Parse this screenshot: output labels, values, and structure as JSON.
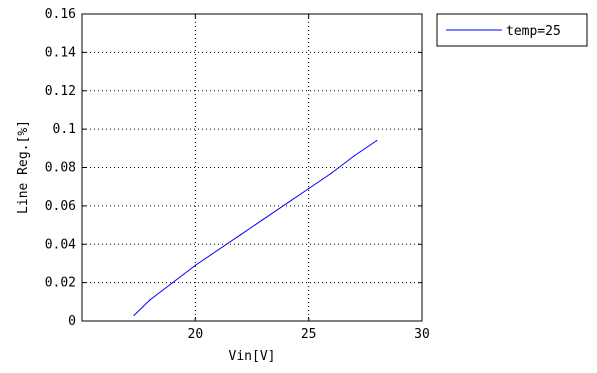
{
  "chart_data": {
    "type": "line",
    "xlabel": "Vin[V]",
    "ylabel": "Line Reg.[%]",
    "xlim": [
      15,
      30
    ],
    "ylim": [
      0,
      0.16
    ],
    "x_ticks": [
      {
        "value": 20,
        "label": "20"
      },
      {
        "value": 25,
        "label": "25"
      },
      {
        "value": 30,
        "label": "30"
      }
    ],
    "y_ticks": [
      {
        "value": 0,
        "label": "0"
      },
      {
        "value": 0.02,
        "label": "0.02"
      },
      {
        "value": 0.04,
        "label": "0.04"
      },
      {
        "value": 0.06,
        "label": "0.06"
      },
      {
        "value": 0.08,
        "label": "0.08"
      },
      {
        "value": 0.1,
        "label": "0.1"
      },
      {
        "value": 0.12,
        "label": "0.12"
      },
      {
        "value": 0.14,
        "label": "0.14"
      },
      {
        "value": 0.16,
        "label": "0.16"
      }
    ],
    "grid": true,
    "legend_position": "outside-top-right",
    "series": [
      {
        "name": "temp=25",
        "color": "#0000ff",
        "x": [
          17.3,
          18.0,
          19.0,
          20.0,
          21.0,
          22.0,
          23.0,
          24.0,
          25.0,
          26.0,
          27.0,
          28.0
        ],
        "y": [
          0.003,
          0.011,
          0.02,
          0.029,
          0.037,
          0.045,
          0.053,
          0.061,
          0.069,
          0.077,
          0.086,
          0.094
        ]
      }
    ]
  }
}
